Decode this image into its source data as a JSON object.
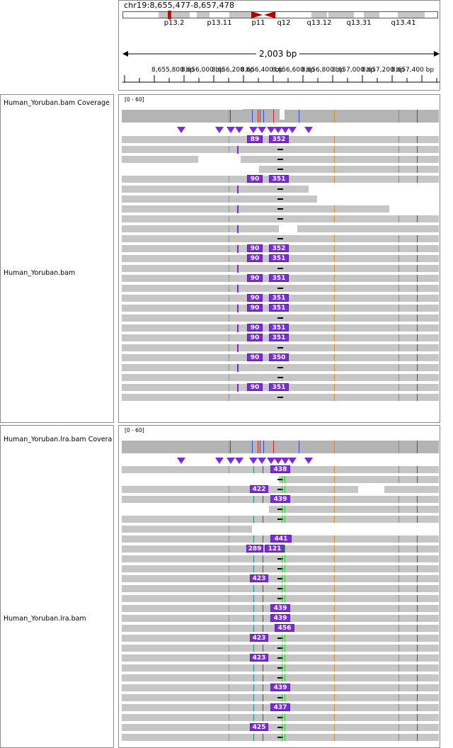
{
  "header": {
    "locus": "chr19:8,655,477-8,657,478",
    "bands": [
      {
        "label": "p13.2",
        "pos": 246
      },
      {
        "label": "p13.11",
        "pos": 310
      },
      {
        "label": "p11",
        "pos": 365
      },
      {
        "label": "q12",
        "pos": 401
      },
      {
        "label": "q13.12",
        "pos": 451
      },
      {
        "label": "q13.31",
        "pos": 507
      },
      {
        "label": "q13.41",
        "pos": 570
      }
    ],
    "span": "2,003 bp",
    "ruler": [
      {
        "label": "8,655,800 bp",
        "pos": 214
      },
      {
        "label": "8,656,000 bp",
        "pos": 256
      },
      {
        "label": "8,656,200 bp",
        "pos": 299
      },
      {
        "label": "8,656,400 bp",
        "pos": 340
      },
      {
        "label": "8,656,600 bp",
        "pos": 384
      },
      {
        "label": "8,656,800 bp",
        "pos": 426
      },
      {
        "label": "8,657,000 bp",
        "pos": 469
      },
      {
        "label": "8,657,200 bp",
        "pos": 511
      },
      {
        "label": "8,657,400 bp",
        "pos": 553
      }
    ]
  },
  "tracks": {
    "a_coverage_name": "Human_Yoruban.bam Coverage",
    "a_coverage_range": "[0 - 60]",
    "a_reads_name": "Human_Yoruban.bam",
    "b_coverage_name": "Human_Yoruban.lra.bam Coverage",
    "b_coverage_range": "[0 - 60]",
    "b_reads_name": "Human_Yoruban.lra.bam"
  },
  "ins_a": [
    {
      "row": 0,
      "a": "89",
      "b": "352"
    },
    {
      "row": 4,
      "a": "90",
      "b": "351"
    },
    {
      "row": 11,
      "a": "90",
      "b": "352"
    },
    {
      "row": 12,
      "a": "90",
      "b": "351"
    },
    {
      "row": 14,
      "a": "90",
      "b": "351"
    },
    {
      "row": 16,
      "a": "90",
      "b": "351"
    },
    {
      "row": 17,
      "a": "90",
      "b": "351"
    },
    {
      "row": 19,
      "a": "90",
      "b": "351"
    },
    {
      "row": 20,
      "a": "90",
      "b": "351"
    },
    {
      "row": 22,
      "a": "90",
      "b": "350"
    },
    {
      "row": 25,
      "a": "90",
      "b": "351"
    }
  ],
  "ins_b": [
    {
      "row": 0,
      "l": 382,
      "w": 28,
      "t": "438"
    },
    {
      "row": 2,
      "l": 353,
      "w": 26,
      "t": "422"
    },
    {
      "row": 3,
      "l": 382,
      "w": 28,
      "t": "439"
    },
    {
      "row": 7,
      "l": 382,
      "w": 30,
      "t": "441"
    },
    {
      "row": 8,
      "l": 348,
      "w": 24,
      "t": "289"
    },
    {
      "row": 8,
      "l": 374,
      "w": 28,
      "t": "121"
    },
    {
      "row": 11,
      "l": 353,
      "w": 26,
      "t": "423"
    },
    {
      "row": 14,
      "l": 382,
      "w": 28,
      "t": "439"
    },
    {
      "row": 15,
      "l": 382,
      "w": 28,
      "t": "439"
    },
    {
      "row": 16,
      "l": 388,
      "w": 28,
      "t": "456"
    },
    {
      "row": 17,
      "l": 353,
      "w": 26,
      "t": "423"
    },
    {
      "row": 19,
      "l": 353,
      "w": 26,
      "t": "423"
    },
    {
      "row": 22,
      "l": 382,
      "w": 28,
      "t": "439"
    },
    {
      "row": 24,
      "l": 382,
      "w": 28,
      "t": "437"
    },
    {
      "row": 26,
      "l": 353,
      "w": 26,
      "t": "425"
    }
  ]
}
